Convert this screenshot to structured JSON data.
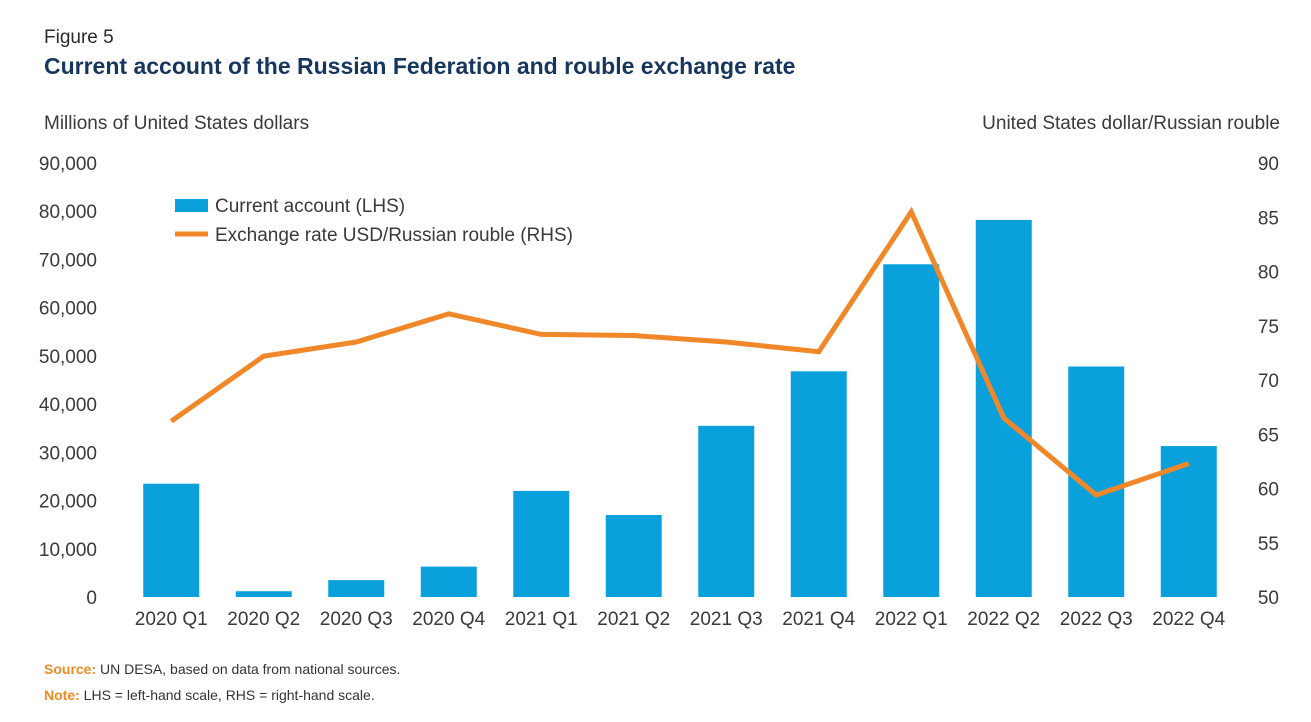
{
  "figure": {
    "label": "Figure 5",
    "title": "Current account of the Russian Federation and rouble exchange rate"
  },
  "footer": {
    "source_label": "Source:",
    "source_text": " UN DESA, based on data from national sources.",
    "note_label": "Note:",
    "note_text": "  LHS = left-hand scale, RHS = right-hand scale."
  },
  "colors": {
    "bar": "#0aa0dc",
    "line": "#f0882a",
    "text": "#3a3a3a"
  },
  "chart_data": {
    "type": "bar",
    "title": "Current account of the Russian Federation and rouble exchange rate",
    "categories": [
      "2020 Q1",
      "2020 Q2",
      "2020 Q3",
      "2020 Q4",
      "2021 Q1",
      "2021 Q2",
      "2021 Q3",
      "2021 Q4",
      "2022 Q1",
      "2022 Q2",
      "2022 Q3",
      "2022 Q4"
    ],
    "ylabel": "Millions of United States dollars",
    "y2label": "United States dollar/Russian rouble",
    "ylim": [
      0,
      90000
    ],
    "y2lim": [
      50,
      90
    ],
    "yticks": [
      "0",
      "10,000",
      "20,000",
      "30,000",
      "40,000",
      "50,000",
      "60,000",
      "70,000",
      "80,000",
      "90,000"
    ],
    "y2ticks": [
      "50",
      "55",
      "60",
      "65",
      "70",
      "75",
      "80",
      "85",
      "90"
    ],
    "grid": false,
    "legend": "top-left",
    "series": [
      {
        "name": "Current account (LHS)",
        "type": "bar",
        "axis": "left",
        "values": [
          23500,
          1200,
          3500,
          6300,
          22000,
          17000,
          35500,
          46800,
          69000,
          78200,
          47800,
          31300
        ]
      },
      {
        "name": "Exchange rate USD/Russian rouble (RHS)",
        "type": "line",
        "axis": "right",
        "values": [
          66.2,
          72.2,
          73.5,
          76.1,
          74.2,
          74.1,
          73.5,
          72.6,
          85.5,
          66.5,
          59.4,
          62.3
        ]
      }
    ]
  }
}
